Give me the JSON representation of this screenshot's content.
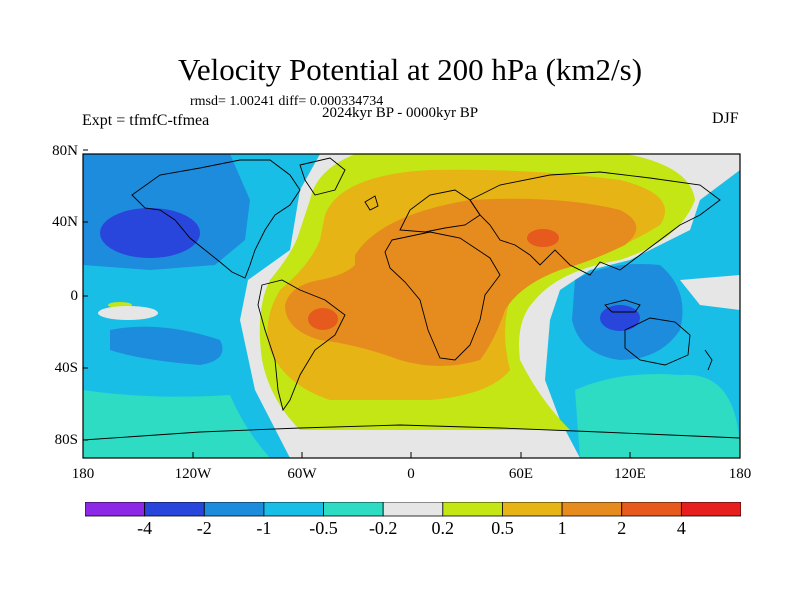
{
  "header": {
    "title": "Velocity Potential at 200 hPa (km2/s)",
    "stats": "rmsd= 1.00241 diff= 0.000334734",
    "period": "2024kyr BP - 0000kyr BP",
    "experiment": "Expt = tfmfC-tfmea",
    "season": "DJF"
  },
  "axes": {
    "lat_labels": [
      "80N",
      "40N",
      "0",
      "40S",
      "80S"
    ],
    "lon_labels": [
      "180",
      "120W",
      "60W",
      "0",
      "60E",
      "120E",
      "180"
    ]
  },
  "colorbar": {
    "labels": [
      "-4",
      "-2",
      "-1",
      "-0.5",
      "-0.2",
      "0.2",
      "0.5",
      "1",
      "2",
      "4"
    ],
    "colors": [
      "#8c28e6",
      "#2846dc",
      "#1e8cdc",
      "#19bee6",
      "#2ddcc3",
      "#e6e6e6",
      "#c3e614",
      "#e6b414",
      "#e68c1e",
      "#e65a1e",
      "#e61e1e"
    ]
  },
  "map": {
    "projection": "cylindrical equidistant",
    "coastlines": true
  }
}
